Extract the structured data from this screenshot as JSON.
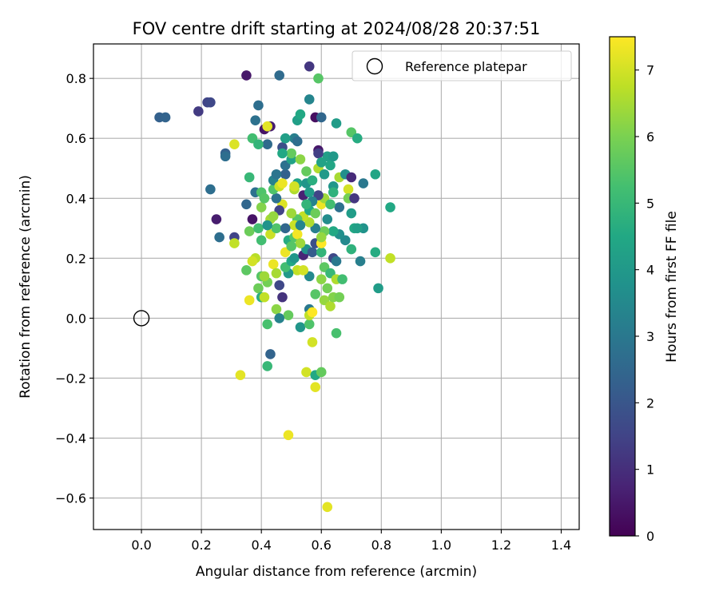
{
  "chart_data": {
    "type": "scatter",
    "title": "FOV centre drift starting at 2024/08/28 20:37:51",
    "xlabel": "Angular distance from reference (arcmin)",
    "ylabel": "Rotation from reference (arcmin)",
    "xlim": [
      -0.16,
      1.46
    ],
    "ylim": [
      -0.705,
      0.915
    ],
    "xticks": [
      0.0,
      0.2,
      0.4,
      0.6,
      0.8,
      1.0,
      1.2,
      1.4
    ],
    "xtick_labels": [
      "0.0",
      "0.2",
      "0.4",
      "0.6",
      "0.8",
      "1.0",
      "1.2",
      "1.4"
    ],
    "yticks": [
      -0.6,
      -0.4,
      -0.2,
      0.0,
      0.2,
      0.4,
      0.6,
      0.8
    ],
    "ytick_labels": [
      "−0.6",
      "−0.4",
      "−0.2",
      "0.0",
      "0.2",
      "0.4",
      "0.6",
      "0.8"
    ],
    "grid": true,
    "legend": {
      "placement": "upper-right",
      "entries": [
        "Reference platepar"
      ]
    },
    "reference_point": {
      "x": 0.0,
      "y": 0.0
    },
    "colorbar": {
      "label": "Hours from first FF file",
      "min": 0,
      "max": 7.5,
      "ticks": [
        0,
        1,
        2,
        3,
        4,
        5,
        6,
        7
      ],
      "tick_labels": [
        "0",
        "1",
        "2",
        "3",
        "4",
        "5",
        "6",
        "7"
      ],
      "colormap": "viridis"
    },
    "points": [
      {
        "x": 0.35,
        "y": 0.81,
        "c": 0.5
      },
      {
        "x": 0.58,
        "y": 0.67,
        "c": 0.3
      },
      {
        "x": 0.56,
        "y": 0.84,
        "c": 1.2
      },
      {
        "x": 0.19,
        "y": 0.69,
        "c": 1.3
      },
      {
        "x": 0.22,
        "y": 0.72,
        "c": 1.5
      },
      {
        "x": 0.23,
        "y": 0.72,
        "c": 1.6
      },
      {
        "x": 0.46,
        "y": 0.81,
        "c": 2.6
      },
      {
        "x": 0.06,
        "y": 0.67,
        "c": 2.3
      },
      {
        "x": 0.08,
        "y": 0.67,
        "c": 2.4
      },
      {
        "x": 0.39,
        "y": 0.71,
        "c": 2.7
      },
      {
        "x": 0.38,
        "y": 0.66,
        "c": 2.8
      },
      {
        "x": 0.41,
        "y": 0.63,
        "c": 0.4
      },
      {
        "x": 0.43,
        "y": 0.64,
        "c": 0.6
      },
      {
        "x": 0.42,
        "y": 0.64,
        "c": 7.2
      },
      {
        "x": 0.42,
        "y": 0.58,
        "c": 2.6
      },
      {
        "x": 0.47,
        "y": 0.57,
        "c": 1.8
      },
      {
        "x": 0.59,
        "y": 0.56,
        "c": 0.5
      },
      {
        "x": 0.6,
        "y": 0.67,
        "c": 2.5
      },
      {
        "x": 0.52,
        "y": 0.66,
        "c": 4.2
      },
      {
        "x": 0.53,
        "y": 0.68,
        "c": 4.5
      },
      {
        "x": 0.56,
        "y": 0.73,
        "c": 3.4
      },
      {
        "x": 0.59,
        "y": 0.8,
        "c": 5.5
      },
      {
        "x": 0.65,
        "y": 0.65,
        "c": 4.1
      },
      {
        "x": 0.7,
        "y": 0.62,
        "c": 5.5
      },
      {
        "x": 0.72,
        "y": 0.6,
        "c": 4.6
      },
      {
        "x": 0.28,
        "y": 0.55,
        "c": 2.3
      },
      {
        "x": 0.28,
        "y": 0.54,
        "c": 2.7
      },
      {
        "x": 0.31,
        "y": 0.58,
        "c": 7.1
      },
      {
        "x": 0.37,
        "y": 0.6,
        "c": 5.2
      },
      {
        "x": 0.39,
        "y": 0.58,
        "c": 4.9
      },
      {
        "x": 0.36,
        "y": 0.47,
        "c": 5.0
      },
      {
        "x": 0.23,
        "y": 0.43,
        "c": 2.7
      },
      {
        "x": 0.38,
        "y": 0.42,
        "c": 2.8
      },
      {
        "x": 0.4,
        "y": 0.42,
        "c": 5.4
      },
      {
        "x": 0.35,
        "y": 0.38,
        "c": 2.5
      },
      {
        "x": 0.37,
        "y": 0.33,
        "c": 0.4
      },
      {
        "x": 0.25,
        "y": 0.33,
        "c": 0.6
      },
      {
        "x": 0.26,
        "y": 0.27,
        "c": 2.7
      },
      {
        "x": 0.31,
        "y": 0.27,
        "c": 1.5
      },
      {
        "x": 0.31,
        "y": 0.25,
        "c": 6.8
      },
      {
        "x": 0.36,
        "y": 0.29,
        "c": 5.8
      },
      {
        "x": 0.39,
        "y": 0.3,
        "c": 5.2
      },
      {
        "x": 0.4,
        "y": 0.26,
        "c": 5.2
      },
      {
        "x": 0.38,
        "y": 0.2,
        "c": 6.7
      },
      {
        "x": 0.35,
        "y": 0.16,
        "c": 5.6
      },
      {
        "x": 0.39,
        "y": 0.1,
        "c": 5.8
      },
      {
        "x": 0.4,
        "y": 0.14,
        "c": 5.5
      },
      {
        "x": 0.36,
        "y": 0.06,
        "c": 7.3
      },
      {
        "x": 0.4,
        "y": 0.07,
        "c": 4.7
      },
      {
        "x": 0.41,
        "y": 0.07,
        "c": 6.8
      },
      {
        "x": 0.42,
        "y": 0.12,
        "c": 5.9
      },
      {
        "x": 0.44,
        "y": 0.18,
        "c": 7.3
      },
      {
        "x": 0.45,
        "y": 0.15,
        "c": 6.5
      },
      {
        "x": 0.45,
        "y": 0.03,
        "c": 6.2
      },
      {
        "x": 0.46,
        "y": 0.11,
        "c": 1.6
      },
      {
        "x": 0.47,
        "y": 0.07,
        "c": 1.1
      },
      {
        "x": 0.49,
        "y": 0.01,
        "c": 5.7
      },
      {
        "x": 0.42,
        "y": -0.02,
        "c": 5.3
      },
      {
        "x": 0.46,
        "y": 0.0,
        "c": 3.3
      },
      {
        "x": 0.43,
        "y": -0.12,
        "c": 2.4
      },
      {
        "x": 0.42,
        "y": -0.16,
        "c": 5.0
      },
      {
        "x": 0.33,
        "y": -0.19,
        "c": 7.2
      },
      {
        "x": 0.49,
        "y": -0.39,
        "c": 7.3
      },
      {
        "x": 0.53,
        "y": -0.03,
        "c": 3.9
      },
      {
        "x": 0.56,
        "y": -0.02,
        "c": 5.4
      },
      {
        "x": 0.56,
        "y": 0.03,
        "c": 3.0
      },
      {
        "x": 0.57,
        "y": -0.08,
        "c": 7.0
      },
      {
        "x": 0.55,
        "y": -0.18,
        "c": 7.0
      },
      {
        "x": 0.58,
        "y": -0.19,
        "c": 4.5
      },
      {
        "x": 0.6,
        "y": -0.18,
        "c": 5.7
      },
      {
        "x": 0.58,
        "y": -0.23,
        "c": 7.2
      },
      {
        "x": 0.62,
        "y": -0.63,
        "c": 7.2
      },
      {
        "x": 0.65,
        "y": -0.05,
        "c": 5.3
      },
      {
        "x": 0.56,
        "y": 0.01,
        "c": 6.8
      },
      {
        "x": 0.57,
        "y": 0.02,
        "c": 7.5
      },
      {
        "x": 0.61,
        "y": 0.06,
        "c": 6.3
      },
      {
        "x": 0.63,
        "y": 0.04,
        "c": 6.6
      },
      {
        "x": 0.64,
        "y": 0.07,
        "c": 6.1
      },
      {
        "x": 0.66,
        "y": 0.07,
        "c": 5.9
      },
      {
        "x": 0.62,
        "y": 0.1,
        "c": 5.9
      },
      {
        "x": 0.58,
        "y": 0.08,
        "c": 5.5
      },
      {
        "x": 0.6,
        "y": 0.13,
        "c": 6.2
      },
      {
        "x": 0.56,
        "y": 0.14,
        "c": 3.5
      },
      {
        "x": 0.52,
        "y": 0.16,
        "c": 6.8
      },
      {
        "x": 0.54,
        "y": 0.16,
        "c": 7.0
      },
      {
        "x": 0.49,
        "y": 0.15,
        "c": 4.0
      },
      {
        "x": 0.48,
        "y": 0.17,
        "c": 5.2
      },
      {
        "x": 0.5,
        "y": 0.19,
        "c": 4.5
      },
      {
        "x": 0.51,
        "y": 0.2,
        "c": 3.9
      },
      {
        "x": 0.54,
        "y": 0.21,
        "c": 0.8
      },
      {
        "x": 0.55,
        "y": 0.23,
        "c": 3.8
      },
      {
        "x": 0.57,
        "y": 0.22,
        "c": 2.2
      },
      {
        "x": 0.58,
        "y": 0.25,
        "c": 1.8
      },
      {
        "x": 0.6,
        "y": 0.22,
        "c": 4.9
      },
      {
        "x": 0.61,
        "y": 0.17,
        "c": 5.6
      },
      {
        "x": 0.63,
        "y": 0.15,
        "c": 5.0
      },
      {
        "x": 0.65,
        "y": 0.13,
        "c": 6.6
      },
      {
        "x": 0.67,
        "y": 0.13,
        "c": 5.2
      },
      {
        "x": 0.64,
        "y": 0.2,
        "c": 1.6
      },
      {
        "x": 0.65,
        "y": 0.19,
        "c": 3.0
      },
      {
        "x": 0.68,
        "y": 0.26,
        "c": 3.5
      },
      {
        "x": 0.7,
        "y": 0.23,
        "c": 4.8
      },
      {
        "x": 0.66,
        "y": 0.28,
        "c": 3.7
      },
      {
        "x": 0.64,
        "y": 0.29,
        "c": 4.5
      },
      {
        "x": 0.61,
        "y": 0.29,
        "c": 5.8
      },
      {
        "x": 0.6,
        "y": 0.25,
        "c": 7.5
      },
      {
        "x": 0.6,
        "y": 0.27,
        "c": 6.3
      },
      {
        "x": 0.58,
        "y": 0.3,
        "c": 3.2
      },
      {
        "x": 0.56,
        "y": 0.32,
        "c": 6.6
      },
      {
        "x": 0.54,
        "y": 0.34,
        "c": 6.8
      },
      {
        "x": 0.52,
        "y": 0.33,
        "c": 5.5
      },
      {
        "x": 0.51,
        "y": 0.31,
        "c": 6.9
      },
      {
        "x": 0.5,
        "y": 0.35,
        "c": 6.4
      },
      {
        "x": 0.47,
        "y": 0.38,
        "c": 7.1
      },
      {
        "x": 0.46,
        "y": 0.36,
        "c": 1.5
      },
      {
        "x": 0.45,
        "y": 0.4,
        "c": 2.8
      },
      {
        "x": 0.43,
        "y": 0.33,
        "c": 6.5
      },
      {
        "x": 0.44,
        "y": 0.34,
        "c": 6.3
      },
      {
        "x": 0.43,
        "y": 0.28,
        "c": 6.9
      },
      {
        "x": 0.45,
        "y": 0.3,
        "c": 5.4
      },
      {
        "x": 0.48,
        "y": 0.3,
        "c": 2.5
      },
      {
        "x": 0.49,
        "y": 0.26,
        "c": 4.6
      },
      {
        "x": 0.51,
        "y": 0.27,
        "c": 5.5
      },
      {
        "x": 0.52,
        "y": 0.28,
        "c": 7.4
      },
      {
        "x": 0.53,
        "y": 0.25,
        "c": 6.4
      },
      {
        "x": 0.48,
        "y": 0.22,
        "c": 7.3
      },
      {
        "x": 0.44,
        "y": 0.43,
        "c": 5.4
      },
      {
        "x": 0.44,
        "y": 0.46,
        "c": 3.3
      },
      {
        "x": 0.46,
        "y": 0.44,
        "c": 6.9
      },
      {
        "x": 0.48,
        "y": 0.48,
        "c": 2.3
      },
      {
        "x": 0.48,
        "y": 0.51,
        "c": 2.8
      },
      {
        "x": 0.5,
        "y": 0.53,
        "c": 4.3
      },
      {
        "x": 0.5,
        "y": 0.55,
        "c": 5.7
      },
      {
        "x": 0.51,
        "y": 0.6,
        "c": 3.2
      },
      {
        "x": 0.52,
        "y": 0.59,
        "c": 2.7
      },
      {
        "x": 0.53,
        "y": 0.53,
        "c": 6.2
      },
      {
        "x": 0.51,
        "y": 0.43,
        "c": 6.6
      },
      {
        "x": 0.52,
        "y": 0.45,
        "c": 4.3
      },
      {
        "x": 0.54,
        "y": 0.41,
        "c": 0.7
      },
      {
        "x": 0.55,
        "y": 0.45,
        "c": 3.9
      },
      {
        "x": 0.55,
        "y": 0.49,
        "c": 5.7
      },
      {
        "x": 0.57,
        "y": 0.46,
        "c": 4.7
      },
      {
        "x": 0.59,
        "y": 0.5,
        "c": 6.6
      },
      {
        "x": 0.61,
        "y": 0.48,
        "c": 4.0
      },
      {
        "x": 0.62,
        "y": 0.54,
        "c": 4.2
      },
      {
        "x": 0.63,
        "y": 0.51,
        "c": 4.4
      },
      {
        "x": 0.64,
        "y": 0.54,
        "c": 4.0
      },
      {
        "x": 0.64,
        "y": 0.44,
        "c": 3.9
      },
      {
        "x": 0.66,
        "y": 0.47,
        "c": 6.5
      },
      {
        "x": 0.68,
        "y": 0.48,
        "c": 3.7
      },
      {
        "x": 0.69,
        "y": 0.43,
        "c": 7.0
      },
      {
        "x": 0.7,
        "y": 0.47,
        "c": 0.9
      },
      {
        "x": 0.69,
        "y": 0.4,
        "c": 5.9
      },
      {
        "x": 0.71,
        "y": 0.4,
        "c": 1.2
      },
      {
        "x": 0.7,
        "y": 0.35,
        "c": 4.1
      },
      {
        "x": 0.71,
        "y": 0.3,
        "c": 4.5
      },
      {
        "x": 0.74,
        "y": 0.3,
        "c": 3.8
      },
      {
        "x": 0.74,
        "y": 0.45,
        "c": 3.0
      },
      {
        "x": 0.78,
        "y": 0.48,
        "c": 4.4
      },
      {
        "x": 0.83,
        "y": 0.37,
        "c": 4.5
      },
      {
        "x": 0.73,
        "y": 0.19,
        "c": 3.2
      },
      {
        "x": 0.78,
        "y": 0.22,
        "c": 4.6
      },
      {
        "x": 0.83,
        "y": 0.2,
        "c": 6.8
      },
      {
        "x": 0.79,
        "y": 0.1,
        "c": 4.1
      },
      {
        "x": 0.62,
        "y": 0.33,
        "c": 3.6
      },
      {
        "x": 0.6,
        "y": 0.38,
        "c": 7.3
      },
      {
        "x": 0.61,
        "y": 0.4,
        "c": 6.4
      },
      {
        "x": 0.59,
        "y": 0.41,
        "c": 1.5
      },
      {
        "x": 0.57,
        "y": 0.39,
        "c": 3.3
      },
      {
        "x": 0.56,
        "y": 0.36,
        "c": 4.5
      },
      {
        "x": 0.58,
        "y": 0.35,
        "c": 5.8
      },
      {
        "x": 0.55,
        "y": 0.38,
        "c": 4.9
      },
      {
        "x": 0.53,
        "y": 0.31,
        "c": 3.4
      },
      {
        "x": 0.5,
        "y": 0.24,
        "c": 5.5
      },
      {
        "x": 0.4,
        "y": 0.37,
        "c": 6.1
      },
      {
        "x": 0.41,
        "y": 0.4,
        "c": 5.5
      },
      {
        "x": 0.47,
        "y": 0.45,
        "c": 7.3
      },
      {
        "x": 0.45,
        "y": 0.48,
        "c": 2.9
      },
      {
        "x": 0.47,
        "y": 0.55,
        "c": 4.5
      },
      {
        "x": 0.48,
        "y": 0.6,
        "c": 4.2
      },
      {
        "x": 0.51,
        "y": 0.44,
        "c": 7.0
      },
      {
        "x": 0.59,
        "y": 0.55,
        "c": 1.4
      },
      {
        "x": 0.6,
        "y": 0.52,
        "c": 4.3
      },
      {
        "x": 0.64,
        "y": 0.42,
        "c": 4.8
      },
      {
        "x": 0.66,
        "y": 0.37,
        "c": 2.8
      },
      {
        "x": 0.72,
        "y": 0.3,
        "c": 4.2
      },
      {
        "x": 0.63,
        "y": 0.38,
        "c": 5.2
      },
      {
        "x": 0.56,
        "y": 0.42,
        "c": 4.1
      },
      {
        "x": 0.42,
        "y": 0.31,
        "c": 3.8
      },
      {
        "x": 0.37,
        "y": 0.19,
        "c": 7.0
      },
      {
        "x": 0.41,
        "y": 0.14,
        "c": 6.4
      }
    ]
  }
}
